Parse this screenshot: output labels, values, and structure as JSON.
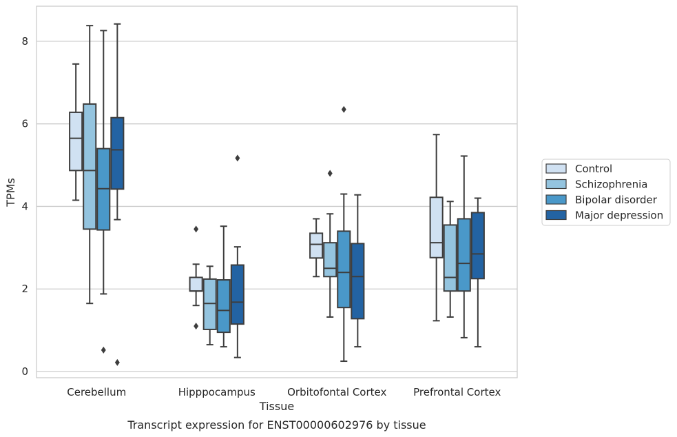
{
  "caption": "Transcript expression for ENST00000602976 by tissue",
  "chart_data": {
    "type": "box",
    "xlabel": "Tissue",
    "ylabel": "TPMs",
    "ylim": [
      -0.15,
      8.85
    ],
    "yticks": [
      0,
      2,
      4,
      6,
      8
    ],
    "grid": "horizontal",
    "legend_position": "right",
    "categories": [
      "Cerebellum",
      "Hipppocampus",
      "Orbitofontal Cortex",
      "Prefrontal Cortex"
    ],
    "series": [
      {
        "name": "Control",
        "color": "#d0e1f2",
        "boxes": [
          {
            "whislo": 4.15,
            "q1": 4.87,
            "med": 5.65,
            "q3": 6.28,
            "whishi": 7.45,
            "fliers": []
          },
          {
            "whislo": 1.6,
            "q1": 1.95,
            "med": 1.95,
            "q3": 2.28,
            "whishi": 2.6,
            "fliers": [
              3.45,
              1.1
            ]
          },
          {
            "whislo": 2.3,
            "q1": 2.75,
            "med": 3.08,
            "q3": 3.35,
            "whishi": 3.7,
            "fliers": []
          },
          {
            "whislo": 1.23,
            "q1": 2.76,
            "med": 3.12,
            "q3": 4.22,
            "whishi": 5.74,
            "fliers": []
          }
        ]
      },
      {
        "name": "Schizophrenia",
        "color": "#94c4df",
        "boxes": [
          {
            "whislo": 1.65,
            "q1": 3.45,
            "med": 4.87,
            "q3": 6.48,
            "whishi": 8.38,
            "fliers": []
          },
          {
            "whislo": 0.65,
            "q1": 1.02,
            "med": 1.65,
            "q3": 2.24,
            "whishi": 2.55,
            "fliers": []
          },
          {
            "whislo": 1.32,
            "q1": 2.3,
            "med": 2.5,
            "q3": 3.12,
            "whishi": 3.82,
            "fliers": [
              4.8
            ]
          },
          {
            "whislo": 1.32,
            "q1": 1.95,
            "med": 2.28,
            "q3": 3.55,
            "whishi": 4.12,
            "fliers": []
          }
        ]
      },
      {
        "name": "Bipolar disorder",
        "color": "#4a98c9",
        "boxes": [
          {
            "whislo": 1.88,
            "q1": 3.43,
            "med": 4.43,
            "q3": 5.4,
            "whishi": 8.26,
            "fliers": [
              0.52
            ]
          },
          {
            "whislo": 0.6,
            "q1": 0.95,
            "med": 1.48,
            "q3": 2.22,
            "whishi": 3.52,
            "fliers": []
          },
          {
            "whislo": 0.25,
            "q1": 1.55,
            "med": 2.4,
            "q3": 3.4,
            "whishi": 4.3,
            "fliers": [
              6.35
            ]
          },
          {
            "whislo": 0.82,
            "q1": 1.95,
            "med": 2.62,
            "q3": 3.7,
            "whishi": 5.22,
            "fliers": []
          }
        ]
      },
      {
        "name": "Major depression",
        "color": "#2363a3",
        "boxes": [
          {
            "whislo": 3.68,
            "q1": 4.42,
            "med": 5.37,
            "q3": 6.15,
            "whishi": 8.42,
            "fliers": [
              0.22
            ]
          },
          {
            "whislo": 0.34,
            "q1": 1.15,
            "med": 1.68,
            "q3": 2.58,
            "whishi": 3.02,
            "fliers": [
              5.17
            ]
          },
          {
            "whislo": 0.6,
            "q1": 1.28,
            "med": 2.3,
            "q3": 3.1,
            "whishi": 4.28,
            "fliers": []
          },
          {
            "whislo": 0.6,
            "q1": 2.25,
            "med": 2.85,
            "q3": 3.85,
            "whishi": 4.2,
            "fliers": []
          }
        ]
      }
    ]
  }
}
